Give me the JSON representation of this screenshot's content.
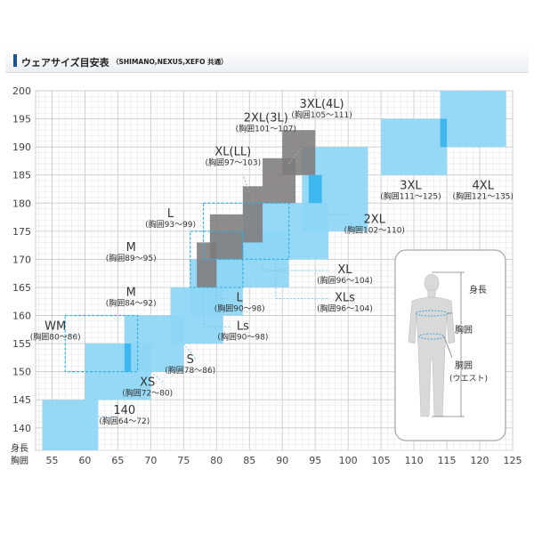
{
  "header": {
    "title": "ウェアサイズ目安表",
    "subtitle": "（SHIMANO,NEXUS,XEFO 共通）"
  },
  "chart_data": {
    "type": "size-range-chart",
    "title": "ウェアサイズ目安表",
    "xlabel": "胸囲",
    "ylabel": "身長",
    "xlim": [
      52.5,
      125
    ],
    "ylim": [
      136,
      200
    ],
    "x_ticks": [
      55,
      60,
      65,
      70,
      75,
      80,
      85,
      90,
      95,
      100,
      105,
      110,
      115,
      120,
      125
    ],
    "y_ticks": [
      140,
      145,
      150,
      155,
      160,
      165,
      170,
      175,
      180,
      185,
      190,
      195,
      200
    ],
    "colors": {
      "blue": "#8dd6f5",
      "blue_dark": "#3eb6ee",
      "gray": "#7e7b7b",
      "dashed": "#36aee6",
      "leader": "#7cc6e8",
      "gray_leader": "#a8a8a8"
    },
    "blue_boxes": [
      {
        "x": [
          53.5,
          62
        ],
        "y": [
          136,
          145
        ]
      },
      {
        "x": [
          60,
          70
        ],
        "y": [
          145,
          155
        ]
      },
      {
        "x": [
          66,
          75
        ],
        "y": [
          150,
          160
        ]
      },
      {
        "x": [
          73,
          81
        ],
        "y": [
          155,
          165
        ]
      },
      {
        "x": [
          76,
          84
        ],
        "y": [
          160,
          170
        ]
      },
      {
        "x": [
          79,
          91
        ],
        "y": [
          165,
          175
        ]
      },
      {
        "x": [
          84,
          97
        ],
        "y": [
          170,
          180
        ]
      },
      {
        "x": [
          93,
          103
        ],
        "y": [
          175,
          190
        ]
      },
      {
        "x": [
          105,
          115
        ],
        "y": [
          185,
          195
        ]
      },
      {
        "x": [
          114,
          124
        ],
        "y": [
          190,
          200
        ]
      }
    ],
    "blue_overlaps": [
      {
        "x": [
          66,
          67
        ],
        "y": [
          150,
          155
        ]
      },
      {
        "x": [
          94,
          96
        ],
        "y": [
          180,
          185
        ]
      },
      {
        "x": [
          114,
          115
        ],
        "y": [
          190,
          195
        ]
      }
    ],
    "gray_boxes": [
      {
        "x": [
          77,
          80
        ],
        "y": [
          165,
          173
        ]
      },
      {
        "x": [
          79,
          84
        ],
        "y": [
          170,
          178
        ]
      },
      {
        "x": [
          84,
          87
        ],
        "y": [
          173,
          183
        ]
      },
      {
        "x": [
          87,
          92
        ],
        "y": [
          180,
          188
        ]
      },
      {
        "x": [
          90,
          95
        ],
        "y": [
          185,
          193
        ]
      }
    ],
    "dashed_boxes": [
      {
        "x": [
          57,
          68
        ],
        "y": [
          150,
          160
        ]
      },
      {
        "x": [
          76,
          84
        ],
        "y": [
          165,
          175
        ]
      },
      {
        "x": [
          78,
          91
        ],
        "y": [
          170,
          180
        ]
      }
    ],
    "size_labels": [
      {
        "size": "3XL(4L)",
        "chest": "(胸囲105〜111)",
        "x": 96,
        "y": 197
      },
      {
        "size": "2XL(3L)",
        "chest": "(胸囲101〜107)",
        "x": 87.5,
        "y": 194.5
      },
      {
        "size": "XL(LL)",
        "chest": "(胸囲97〜103)",
        "x": 82.5,
        "y": 188.5
      },
      {
        "size": "L",
        "chest": "(胸囲93〜99)",
        "x": 73,
        "y": 177.5
      },
      {
        "size": "M",
        "chest": "(胸囲89〜95)",
        "x": 67,
        "y": 171.5
      },
      {
        "size": "M",
        "chest": "(胸囲84〜92)",
        "x": 67,
        "y": 163.5
      },
      {
        "size": "WM",
        "chest": "(胸囲80〜86)",
        "x": 55.5,
        "y": 157.5
      },
      {
        "size": "S",
        "chest": "(胸囲78〜86)",
        "x": 76,
        "y": 151.5
      },
      {
        "size": "XS",
        "chest": "(胸囲72〜80)",
        "x": 69.5,
        "y": 147.5
      },
      {
        "size": "140",
        "chest": "(胸囲64〜72)",
        "x": 66,
        "y": 142.5
      },
      {
        "size": "L",
        "chest": "(胸囲90〜98)",
        "x": 83.5,
        "y": 162.5
      },
      {
        "size": "Ls",
        "chest": "(胸囲90〜98)",
        "x": 84,
        "y": 157.5
      },
      {
        "size": "XL",
        "chest": "(胸囲96〜104)",
        "x": 99.5,
        "y": 167.5
      },
      {
        "size": "XLs",
        "chest": "(胸囲96〜104)",
        "x": 99.5,
        "y": 162.5
      },
      {
        "size": "2XL",
        "chest": "(胸囲102〜110)",
        "x": 104,
        "y": 176.5
      },
      {
        "size": "3XL",
        "chest": "(胸囲111〜125)",
        "x": 109.5,
        "y": 182.5
      },
      {
        "size": "4XL",
        "chest": "(胸囲121〜135)",
        "x": 120.5,
        "y": 182.5
      }
    ],
    "body_labels": {
      "height": "身長",
      "chest": "胸囲",
      "waist": "胴囲",
      "waist_sub": "(ウエスト)"
    }
  }
}
